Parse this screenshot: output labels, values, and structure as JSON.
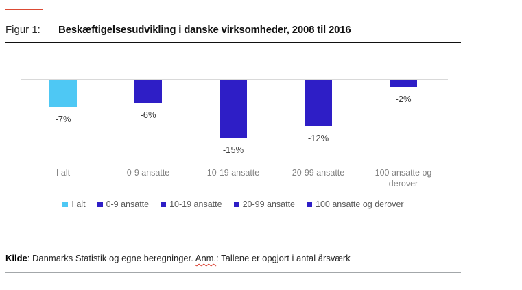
{
  "figure": {
    "label": "Figur 1:",
    "title": "Beskæftigelsesudvikling i danske virksomheder, 2008 til 2016",
    "accent_color": "#db4a34"
  },
  "chart_data": {
    "type": "bar",
    "title": "Beskæftigelsesudvikling i danske virksomheder, 2008 til 2016",
    "categories": [
      "I alt",
      "0-9 ansatte",
      "10-19 ansatte",
      "20-99 ansatte",
      "100 ansatte og derover"
    ],
    "values": [
      -7,
      -6,
      -15,
      -12,
      -2
    ],
    "value_labels": [
      "-7%",
      "-6%",
      "-15%",
      "-12%",
      "-2%"
    ],
    "bar_colors": [
      "#4ec8f4",
      "#2e1ec6",
      "#2e1ec6",
      "#2e1ec6",
      "#2e1ec6"
    ],
    "xlabel": "",
    "ylabel": "",
    "ylim": [
      -16,
      0
    ],
    "grid": false,
    "legend_position": "bottom",
    "legend": [
      {
        "label": "I alt",
        "color": "#4ec8f4"
      },
      {
        "label": "0-9 ansatte",
        "color": "#2e1ec6"
      },
      {
        "label": "10-19 ansatte",
        "color": "#2e1ec6"
      },
      {
        "label": "20-99 ansatte",
        "color": "#2e1ec6"
      },
      {
        "label": "100 ansatte og derover",
        "color": "#2e1ec6"
      }
    ]
  },
  "footer": {
    "source_bold": "Kilde",
    "source_rest": ": Danmarks Statistik og egne beregninger. ",
    "note_underlined": "Anm.",
    "note_rest": ": Tallene er opgjort i antal årsværk"
  }
}
